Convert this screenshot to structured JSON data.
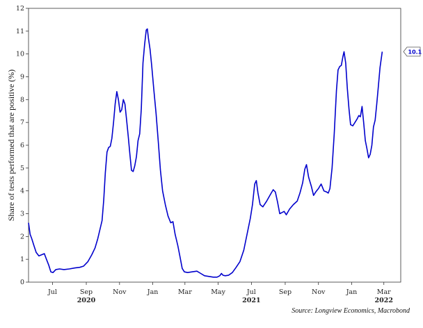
{
  "chart_data": {
    "type": "line",
    "title": "",
    "ylabel": "Share of tests performed that are positive (%)",
    "xlabel": "",
    "ylim": [
      0,
      12
    ],
    "yticks": [
      0,
      1,
      2,
      3,
      4,
      5,
      6,
      7,
      8,
      9,
      10,
      11,
      12
    ],
    "xlim": [
      "2020-06-01",
      "2022-04-15"
    ],
    "xticks": [
      {
        "date": "2020-07-15",
        "label": "Jul"
      },
      {
        "date": "2020-09-15",
        "label": "Sep"
      },
      {
        "date": "2020-11-15",
        "label": "Nov"
      },
      {
        "date": "2021-01-15",
        "label": "Jan"
      },
      {
        "date": "2021-03-15",
        "label": "Mar"
      },
      {
        "date": "2021-05-15",
        "label": "May"
      },
      {
        "date": "2021-07-15",
        "label": "Jul"
      },
      {
        "date": "2021-09-15",
        "label": "Sep"
      },
      {
        "date": "2021-11-15",
        "label": "Nov"
      },
      {
        "date": "2022-01-15",
        "label": "Jan"
      },
      {
        "date": "2022-03-15",
        "label": "Mar"
      }
    ],
    "year_labels": [
      {
        "date": "2020-09-15",
        "label": "2020"
      },
      {
        "date": "2021-07-15",
        "label": "2021"
      },
      {
        "date": "2022-03-15",
        "label": "2022"
      }
    ],
    "grid": false,
    "legend": "none",
    "series": [
      {
        "color": "#0000cc",
        "points": [
          [
            "2020-06-01",
            2.6
          ],
          [
            "2020-06-04",
            2.1
          ],
          [
            "2020-06-07",
            1.9
          ],
          [
            "2020-06-11",
            1.6
          ],
          [
            "2020-06-15",
            1.3
          ],
          [
            "2020-06-20",
            1.15
          ],
          [
            "2020-06-25",
            1.2
          ],
          [
            "2020-06-30",
            1.25
          ],
          [
            "2020-07-04",
            1.0
          ],
          [
            "2020-07-08",
            0.75
          ],
          [
            "2020-07-12",
            0.45
          ],
          [
            "2020-07-16",
            0.42
          ],
          [
            "2020-07-21",
            0.55
          ],
          [
            "2020-07-28",
            0.58
          ],
          [
            "2020-08-05",
            0.55
          ],
          [
            "2020-08-15",
            0.58
          ],
          [
            "2020-08-25",
            0.62
          ],
          [
            "2020-09-03",
            0.65
          ],
          [
            "2020-09-10",
            0.7
          ],
          [
            "2020-09-18",
            0.9
          ],
          [
            "2020-09-25",
            1.2
          ],
          [
            "2020-10-01",
            1.5
          ],
          [
            "2020-10-06",
            1.9
          ],
          [
            "2020-10-10",
            2.3
          ],
          [
            "2020-10-14",
            2.7
          ],
          [
            "2020-10-17",
            3.6
          ],
          [
            "2020-10-20",
            4.8
          ],
          [
            "2020-10-23",
            5.7
          ],
          [
            "2020-10-26",
            5.9
          ],
          [
            "2020-10-29",
            5.95
          ],
          [
            "2020-11-01",
            6.3
          ],
          [
            "2020-11-04",
            7.0
          ],
          [
            "2020-11-07",
            7.8
          ],
          [
            "2020-11-10",
            8.35
          ],
          [
            "2020-11-13",
            8.0
          ],
          [
            "2020-11-16",
            7.45
          ],
          [
            "2020-11-19",
            7.55
          ],
          [
            "2020-11-22",
            8.0
          ],
          [
            "2020-11-25",
            7.8
          ],
          [
            "2020-11-28",
            7.1
          ],
          [
            "2020-12-01",
            6.4
          ],
          [
            "2020-12-04",
            5.6
          ],
          [
            "2020-12-07",
            4.9
          ],
          [
            "2020-12-10",
            4.85
          ],
          [
            "2020-12-13",
            5.1
          ],
          [
            "2020-12-16",
            5.5
          ],
          [
            "2020-12-19",
            6.2
          ],
          [
            "2020-12-22",
            6.5
          ],
          [
            "2020-12-25",
            7.6
          ],
          [
            "2020-12-28",
            9.6
          ],
          [
            "2020-12-31",
            10.4
          ],
          [
            "2021-01-03",
            11.05
          ],
          [
            "2021-01-05",
            11.1
          ],
          [
            "2021-01-07",
            10.7
          ],
          [
            "2021-01-10",
            10.2
          ],
          [
            "2021-01-13",
            9.5
          ],
          [
            "2021-01-17",
            8.4
          ],
          [
            "2021-01-21",
            7.4
          ],
          [
            "2021-01-25",
            6.2
          ],
          [
            "2021-01-29",
            4.9
          ],
          [
            "2021-02-02",
            4.0
          ],
          [
            "2021-02-07",
            3.4
          ],
          [
            "2021-02-12",
            2.9
          ],
          [
            "2021-02-17",
            2.6
          ],
          [
            "2021-02-21",
            2.65
          ],
          [
            "2021-02-25",
            2.1
          ],
          [
            "2021-03-02",
            1.6
          ],
          [
            "2021-03-06",
            1.1
          ],
          [
            "2021-03-10",
            0.6
          ],
          [
            "2021-03-14",
            0.45
          ],
          [
            "2021-03-20",
            0.42
          ],
          [
            "2021-03-28",
            0.45
          ],
          [
            "2021-04-06",
            0.48
          ],
          [
            "2021-04-13",
            0.38
          ],
          [
            "2021-04-20",
            0.28
          ],
          [
            "2021-04-28",
            0.25
          ],
          [
            "2021-05-06",
            0.22
          ],
          [
            "2021-05-13",
            0.22
          ],
          [
            "2021-05-18",
            0.28
          ],
          [
            "2021-05-21",
            0.38
          ],
          [
            "2021-05-24",
            0.3
          ],
          [
            "2021-05-28",
            0.28
          ],
          [
            "2021-06-03",
            0.3
          ],
          [
            "2021-06-10",
            0.42
          ],
          [
            "2021-06-17",
            0.65
          ],
          [
            "2021-06-24",
            0.9
          ],
          [
            "2021-07-01",
            1.4
          ],
          [
            "2021-07-07",
            2.1
          ],
          [
            "2021-07-13",
            2.8
          ],
          [
            "2021-07-17",
            3.4
          ],
          [
            "2021-07-21",
            4.3
          ],
          [
            "2021-07-24",
            4.45
          ],
          [
            "2021-07-27",
            3.9
          ],
          [
            "2021-07-31",
            3.4
          ],
          [
            "2021-08-05",
            3.3
          ],
          [
            "2021-08-12",
            3.55
          ],
          [
            "2021-08-19",
            3.85
          ],
          [
            "2021-08-24",
            4.05
          ],
          [
            "2021-08-28",
            3.95
          ],
          [
            "2021-09-01",
            3.5
          ],
          [
            "2021-09-05",
            3.0
          ],
          [
            "2021-09-09",
            3.05
          ],
          [
            "2021-09-13",
            3.1
          ],
          [
            "2021-09-17",
            2.95
          ],
          [
            "2021-09-23",
            3.2
          ],
          [
            "2021-09-30",
            3.4
          ],
          [
            "2021-10-07",
            3.55
          ],
          [
            "2021-10-12",
            3.9
          ],
          [
            "2021-10-17",
            4.35
          ],
          [
            "2021-10-21",
            4.95
          ],
          [
            "2021-10-24",
            5.15
          ],
          [
            "2021-10-28",
            4.6
          ],
          [
            "2021-11-02",
            4.2
          ],
          [
            "2021-11-06",
            3.8
          ],
          [
            "2021-11-10",
            3.95
          ],
          [
            "2021-11-15",
            4.1
          ],
          [
            "2021-11-20",
            4.3
          ],
          [
            "2021-11-25",
            4.0
          ],
          [
            "2021-11-30",
            3.95
          ],
          [
            "2021-12-03",
            3.9
          ],
          [
            "2021-12-06",
            4.1
          ],
          [
            "2021-12-10",
            5.0
          ],
          [
            "2021-12-14",
            6.5
          ],
          [
            "2021-12-18",
            8.4
          ],
          [
            "2021-12-21",
            9.3
          ],
          [
            "2021-12-24",
            9.45
          ],
          [
            "2021-12-27",
            9.5
          ],
          [
            "2021-12-30",
            9.9
          ],
          [
            "2022-01-01",
            10.1
          ],
          [
            "2022-01-04",
            9.6
          ],
          [
            "2022-01-07",
            8.5
          ],
          [
            "2022-01-10",
            7.6
          ],
          [
            "2022-01-13",
            6.9
          ],
          [
            "2022-01-17",
            6.85
          ],
          [
            "2022-01-21",
            7.0
          ],
          [
            "2022-01-25",
            7.15
          ],
          [
            "2022-01-28",
            7.3
          ],
          [
            "2022-01-31",
            7.25
          ],
          [
            "2022-02-03",
            7.7
          ],
          [
            "2022-02-06",
            7.0
          ],
          [
            "2022-02-09",
            6.2
          ],
          [
            "2022-02-12",
            5.85
          ],
          [
            "2022-02-15",
            5.45
          ],
          [
            "2022-02-18",
            5.6
          ],
          [
            "2022-02-21",
            6.0
          ],
          [
            "2022-02-24",
            6.8
          ],
          [
            "2022-02-27",
            7.1
          ],
          [
            "2022-03-02",
            7.8
          ],
          [
            "2022-03-05",
            8.6
          ],
          [
            "2022-03-08",
            9.4
          ],
          [
            "2022-03-12",
            10.1
          ]
        ]
      }
    ],
    "annotations": [
      {
        "text": "10.1",
        "value": 10.1,
        "placement": "right-axis"
      }
    ],
    "source": "Source: Longview Economics, Macrobond"
  }
}
